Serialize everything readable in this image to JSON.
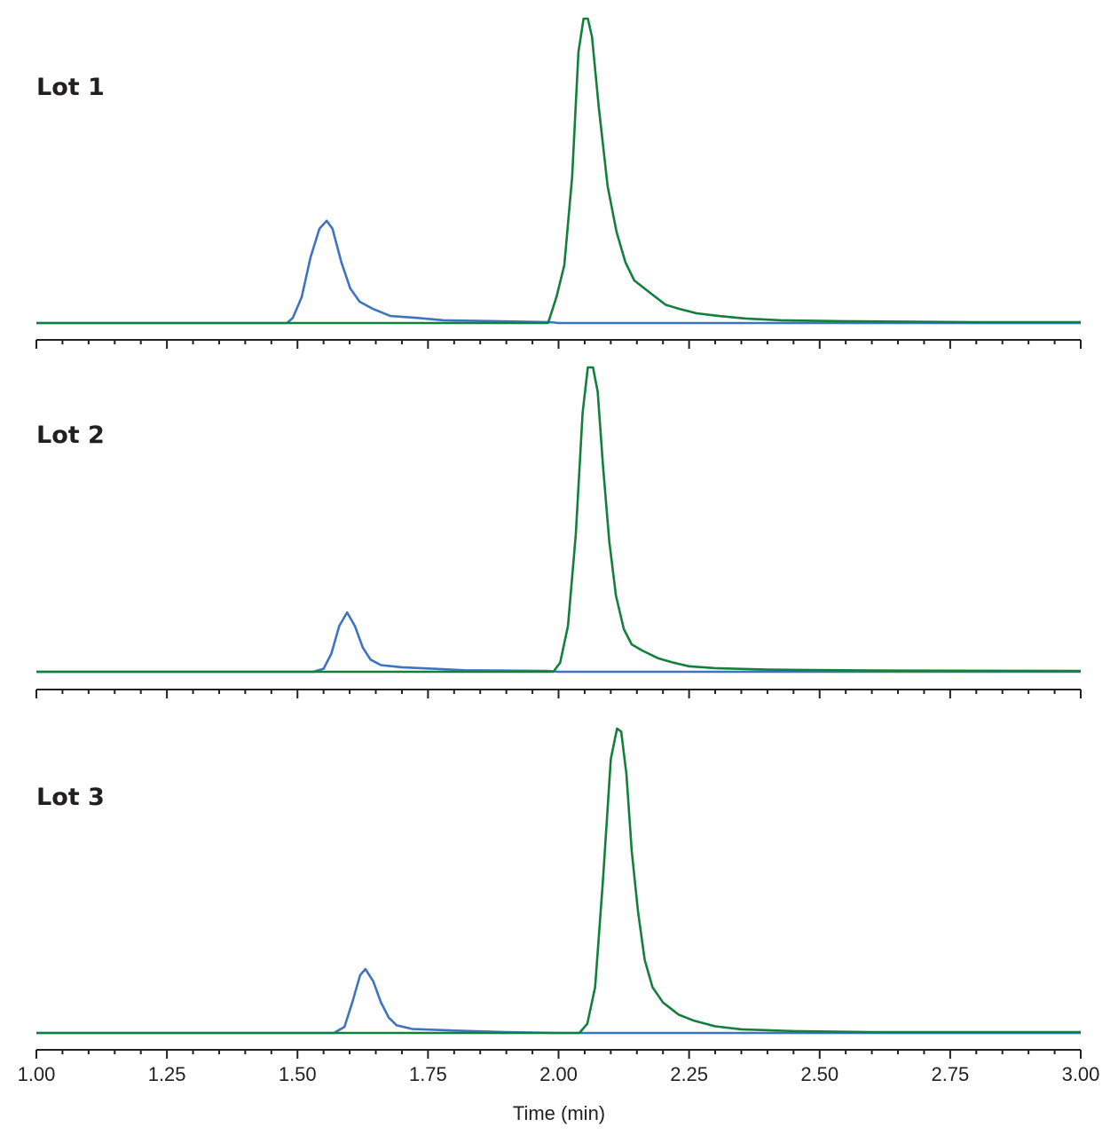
{
  "chart_data": {
    "type": "line",
    "xlabel": "Time (min)",
    "ylabel": "",
    "xlim": [
      1.0,
      3.0
    ],
    "x_ticks": [
      "1.00",
      "1.25",
      "1.50",
      "1.75",
      "2.00",
      "2.25",
      "2.50",
      "2.75",
      "3.00"
    ],
    "x_minor_tick_step": 0.05,
    "grid": false,
    "colors": {
      "blue": "#3d73bf",
      "green": "#12803c",
      "axis": "#231f20"
    },
    "panels": [
      {
        "label": "Lot 1",
        "series": [
          {
            "color": "blue",
            "points": [
              [
                1.0,
                0
              ],
              [
                1.48,
                0
              ],
              [
                1.491,
                1.7
              ],
              [
                1.508,
                8.5
              ],
              [
                1.525,
                21.6
              ],
              [
                1.542,
                31
              ],
              [
                1.556,
                33.6
              ],
              [
                1.567,
                31
              ],
              [
                1.584,
                20
              ],
              [
                1.601,
                11.4
              ],
              [
                1.619,
                7
              ],
              [
                1.644,
                4.7
              ],
              [
                1.678,
                2.3
              ],
              [
                1.729,
                1.7
              ],
              [
                1.78,
                0.9
              ],
              [
                1.882,
                0.6
              ],
              [
                1.984,
                0.3
              ],
              [
                2.0,
                0
              ],
              [
                3.0,
                0
              ]
            ]
          },
          {
            "color": "green",
            "points": [
              [
                1.0,
                0
              ],
              [
                1.98,
                0
              ],
              [
                1.996,
                8.5
              ],
              [
                2.011,
                19
              ],
              [
                2.026,
                48
              ],
              [
                2.038,
                89
              ],
              [
                2.048,
                100
              ],
              [
                2.056,
                100
              ],
              [
                2.064,
                94
              ],
              [
                2.077,
                71
              ],
              [
                2.094,
                45
              ],
              [
                2.111,
                30
              ],
              [
                2.128,
                20
              ],
              [
                2.145,
                14
              ],
              [
                2.171,
                10.5
              ],
              [
                2.205,
                6
              ],
              [
                2.23,
                4.7
              ],
              [
                2.264,
                3.2
              ],
              [
                2.307,
                2.3
              ],
              [
                2.358,
                1.5
              ],
              [
                2.426,
                0.9
              ],
              [
                2.545,
                0.6
              ],
              [
                2.8,
                0.3
              ],
              [
                3.0,
                0.3
              ]
            ]
          }
        ]
      },
      {
        "label": "Lot 2",
        "series": [
          {
            "color": "blue",
            "points": [
              [
                1.0,
                0
              ],
              [
                1.53,
                0
              ],
              [
                1.55,
                1
              ],
              [
                1.565,
                6
              ],
              [
                1.58,
                15
              ],
              [
                1.595,
                19.5
              ],
              [
                1.61,
                15
              ],
              [
                1.625,
                8
              ],
              [
                1.64,
                4
              ],
              [
                1.66,
                2.2
              ],
              [
                1.7,
                1.5
              ],
              [
                1.76,
                1
              ],
              [
                1.82,
                0.5
              ],
              [
                1.98,
                0.3
              ],
              [
                2.0,
                0
              ],
              [
                3.0,
                0
              ]
            ]
          },
          {
            "color": "green",
            "points": [
              [
                1.0,
                0
              ],
              [
                1.99,
                0
              ],
              [
                2.003,
                3
              ],
              [
                2.018,
                15
              ],
              [
                2.033,
                45
              ],
              [
                2.046,
                85
              ],
              [
                2.056,
                100
              ],
              [
                2.066,
                100
              ],
              [
                2.075,
                92
              ],
              [
                2.085,
                68
              ],
              [
                2.097,
                43
              ],
              [
                2.11,
                25
              ],
              [
                2.125,
                14
              ],
              [
                2.14,
                9
              ],
              [
                2.16,
                7
              ],
              [
                2.19,
                4.5
              ],
              [
                2.22,
                3
              ],
              [
                2.25,
                1.8
              ],
              [
                2.3,
                1.2
              ],
              [
                2.4,
                0.7
              ],
              [
                2.6,
                0.4
              ],
              [
                3.0,
                0.3
              ]
            ]
          }
        ]
      },
      {
        "label": "Lot 3",
        "series": [
          {
            "color": "blue",
            "points": [
              [
                1.0,
                0
              ],
              [
                1.57,
                0
              ],
              [
                1.59,
                2
              ],
              [
                1.605,
                10
              ],
              [
                1.62,
                19
              ],
              [
                1.63,
                21
              ],
              [
                1.645,
                17
              ],
              [
                1.66,
                10
              ],
              [
                1.675,
                5
              ],
              [
                1.69,
                2.5
              ],
              [
                1.72,
                1.3
              ],
              [
                1.8,
                0.8
              ],
              [
                1.9,
                0.3
              ],
              [
                2.0,
                0
              ],
              [
                3.0,
                0
              ]
            ]
          },
          {
            "color": "green",
            "points": [
              [
                1.0,
                0
              ],
              [
                2.04,
                0
              ],
              [
                2.055,
                3
              ],
              [
                2.07,
                15
              ],
              [
                2.085,
                50
              ],
              [
                2.1,
                90
              ],
              [
                2.112,
                100
              ],
              [
                2.12,
                99
              ],
              [
                2.13,
                85
              ],
              [
                2.14,
                60
              ],
              [
                2.152,
                40
              ],
              [
                2.165,
                24
              ],
              [
                2.18,
                15
              ],
              [
                2.2,
                10
              ],
              [
                2.23,
                6
              ],
              [
                2.26,
                4
              ],
              [
                2.3,
                2.2
              ],
              [
                2.35,
                1.2
              ],
              [
                2.45,
                0.6
              ],
              [
                2.6,
                0.3
              ],
              [
                3.0,
                0.3
              ]
            ]
          }
        ]
      }
    ]
  }
}
